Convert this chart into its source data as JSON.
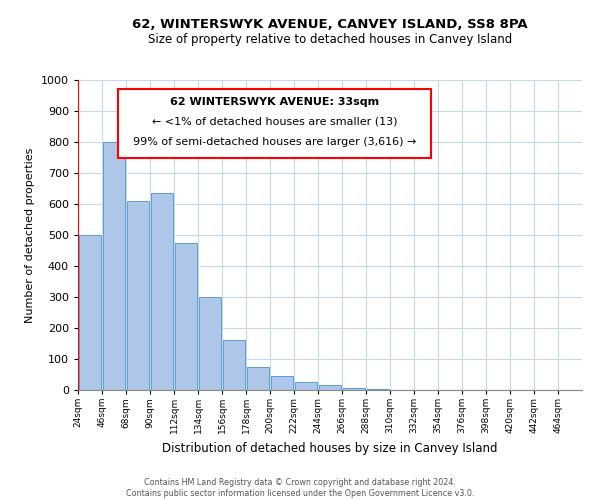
{
  "title": "62, WINTERSWYK AVENUE, CANVEY ISLAND, SS8 8PA",
  "subtitle": "Size of property relative to detached houses in Canvey Island",
  "xlabel": "Distribution of detached houses by size in Canvey Island",
  "ylabel": "Number of detached properties",
  "bar_values": [
    500,
    800,
    610,
    635,
    475,
    300,
    160,
    75,
    45,
    25,
    15,
    5,
    2,
    1,
    1,
    1,
    1,
    1,
    1,
    1
  ],
  "bin_labels": [
    "24sqm",
    "46sqm",
    "68sqm",
    "90sqm",
    "112sqm",
    "134sqm",
    "156sqm",
    "178sqm",
    "200sqm",
    "222sqm",
    "244sqm",
    "266sqm",
    "288sqm",
    "310sqm",
    "332sqm",
    "354sqm",
    "376sqm",
    "398sqm",
    "420sqm",
    "442sqm",
    "464sqm"
  ],
  "bar_color": "#aec6e8",
  "bar_edge_color": "#5a9fd4",
  "annotation_line1": "62 WINTERSWYK AVENUE: 33sqm",
  "annotation_line2": "← <1% of detached houses are smaller (13)",
  "annotation_line3": "99% of semi-detached houses are larger (3,616) →",
  "ylim": [
    0,
    1000
  ],
  "yticks": [
    0,
    100,
    200,
    300,
    400,
    500,
    600,
    700,
    800,
    900,
    1000
  ],
  "footer_line1": "Contains HM Land Registry data © Crown copyright and database right 2024.",
  "footer_line2": "Contains public sector information licensed under the Open Government Licence v3.0.",
  "bg_color": "#ffffff",
  "grid_color": "#c8d8ec"
}
